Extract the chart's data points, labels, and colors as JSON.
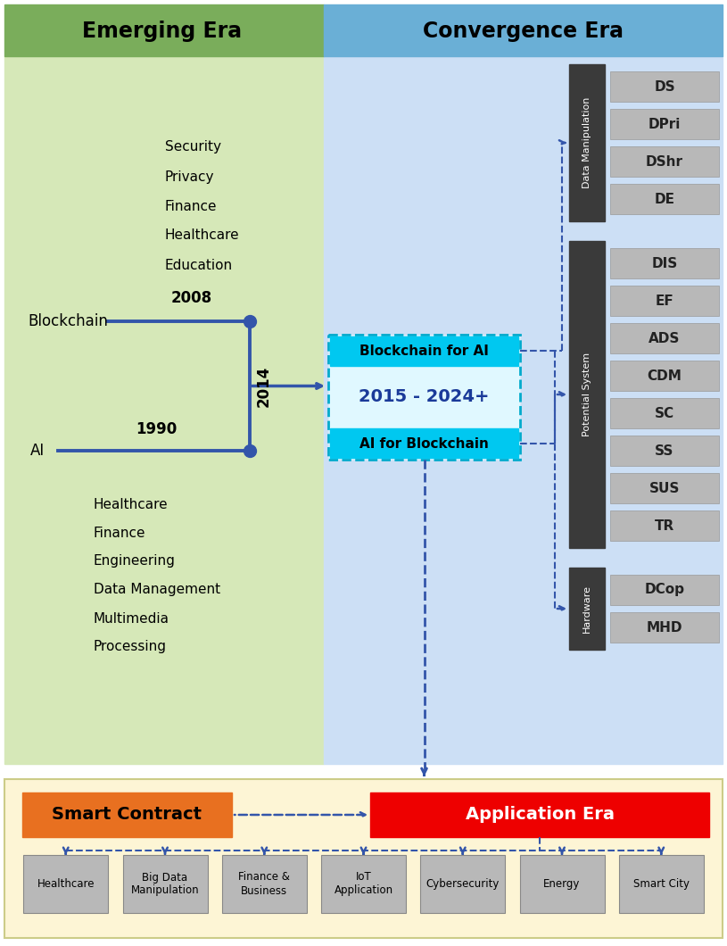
{
  "fig_width": 8.15,
  "fig_height": 10.6,
  "bg_color": "#ffffff",
  "emerging_bg": "#d6e8b8",
  "emerging_header": "#7aad5b",
  "convergence_bg": "#ccdff5",
  "convergence_header": "#6aafd6",
  "app_era_bg": "#fdf5d5",
  "dark_box_color": "#3a3a3a",
  "gray_box_color": "#b8b8b8",
  "cyan_box_color": "#00c8f0",
  "blockchain_apps": [
    "Security",
    "Privacy",
    "Finance",
    "Healthcare",
    "Education"
  ],
  "ai_apps": [
    "Healthcare",
    "Finance",
    "Engineering",
    "Data Management",
    "Multimedia",
    "Processing"
  ],
  "data_manip_items": [
    "DS",
    "DPri",
    "DShr",
    "DE"
  ],
  "potential_items": [
    "DIS",
    "EF",
    "ADS",
    "CDM",
    "SC",
    "SS",
    "SUS",
    "TR"
  ],
  "hardware_items": [
    "DCop",
    "MHD"
  ],
  "bottom_apps": [
    "Healthcare",
    "Big Data\nManipulation",
    "Finance &\nBusiness",
    "IoT\nApplication",
    "Cybersecurity",
    "Energy",
    "Smart City"
  ],
  "smart_contract_color": "#e87020",
  "application_era_color": "#ee0000",
  "arrow_color": "#3355aa"
}
